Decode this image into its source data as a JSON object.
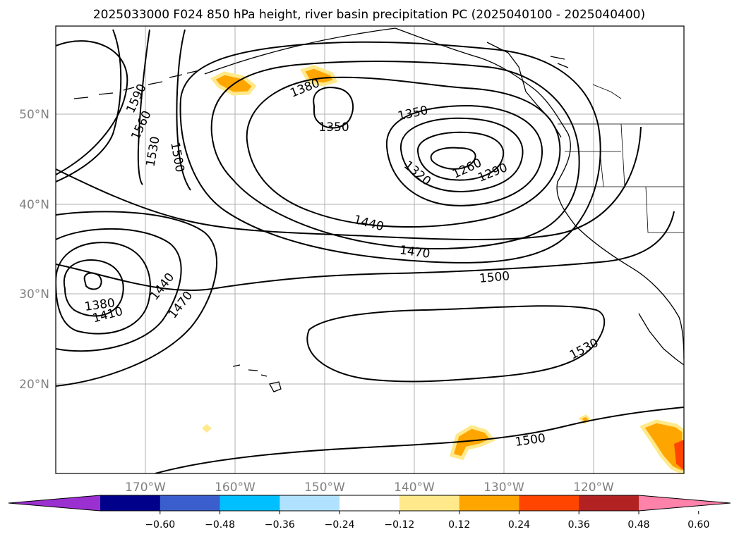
{
  "title": "2025033000 F024 850 hPa height, river basin precipitation PC (2025040100 - 2025040400)",
  "map": {
    "longitude_labels": [
      "170°W",
      "160°W",
      "150°W",
      "140°W",
      "130°W",
      "120°W"
    ],
    "latitude_labels": [
      "50°N",
      "40°N",
      "30°N",
      "20°N"
    ],
    "contour_labels": [
      "1590",
      "1560",
      "1530",
      "1500",
      "1380",
      "1350",
      "1350",
      "1320",
      "1260",
      "1290",
      "1440",
      "1470",
      "1500",
      "1380",
      "1410",
      "1440",
      "1470",
      "1530",
      "1500"
    ]
  },
  "colorbar": {
    "ticks": [
      "−0.60",
      "−0.48",
      "−0.36",
      "−0.24",
      "−0.12",
      "0.12",
      "0.24",
      "0.36",
      "0.48",
      "0.60"
    ],
    "colors": [
      "#9b30d0",
      "#00008b",
      "#3a5fcd",
      "#00bfff",
      "#b0e2ff",
      "#ffffff",
      "#ffe98a",
      "#ffa500",
      "#ff4500",
      "#b22222",
      "#ff82ab"
    ]
  }
}
